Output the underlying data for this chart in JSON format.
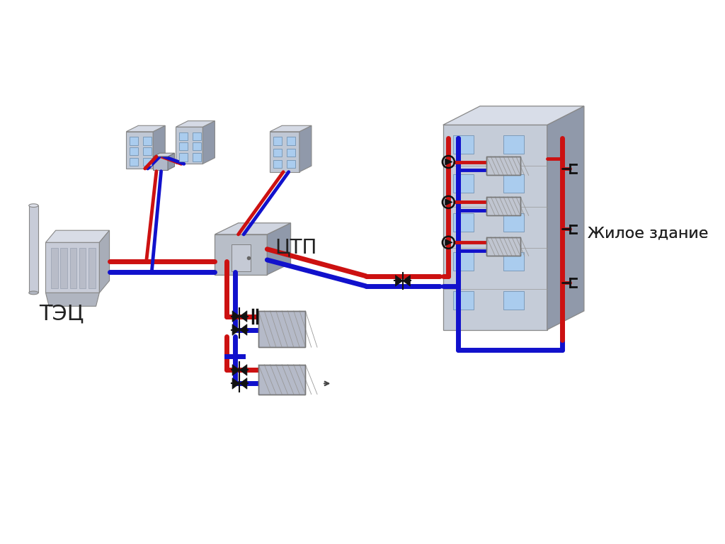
{
  "bg": "#ffffff",
  "rc": "#cc1111",
  "bc": "#1111cc",
  "vc": "#111111",
  "lw": 3.5,
  "lw2": 5,
  "tec_label": "ТЭЦ",
  "ctp_label": "ЦТП",
  "building_label": "Жилое здание"
}
